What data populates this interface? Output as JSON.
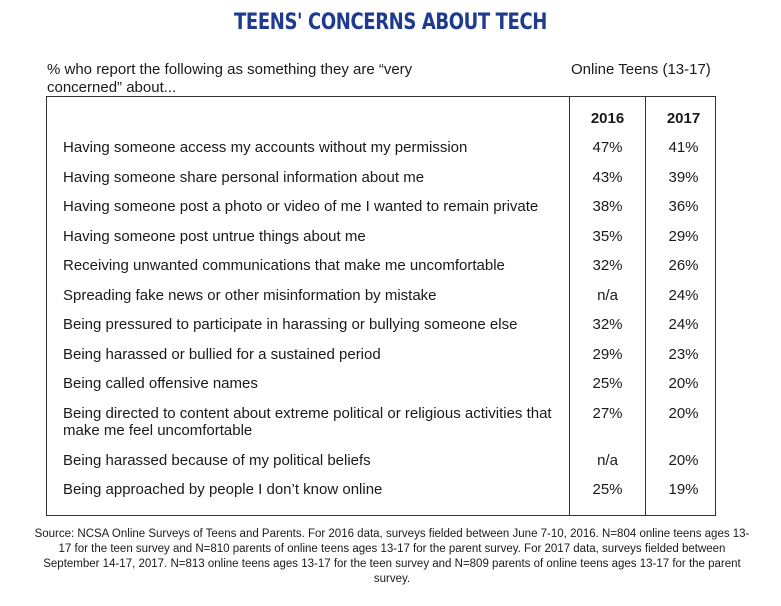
{
  "chart_data": {
    "type": "table",
    "title": "TEENS' CONCERNS ABOUT TECH",
    "subtitle": "% who report the following as something they are “very concerned” about...",
    "group_label": "Online Teens (13-17)",
    "columns": [
      "2016",
      "2017"
    ],
    "rows": [
      {
        "label": "Having someone access my accounts without my permission",
        "values": [
          "47%",
          "41%"
        ]
      },
      {
        "label": "Having someone share personal information about me",
        "values": [
          "43%",
          "39%"
        ]
      },
      {
        "label": "Having someone post a photo or video of me I wanted to remain private",
        "values": [
          "38%",
          "36%"
        ]
      },
      {
        "label": "Having someone post untrue things about me",
        "values": [
          "35%",
          "29%"
        ]
      },
      {
        "label": "Receiving unwanted communications that make me uncomfortable",
        "values": [
          "32%",
          "26%"
        ]
      },
      {
        "label": "Spreading fake news or other misinformation by mistake",
        "values": [
          "n/a",
          "24%"
        ]
      },
      {
        "label": "Being pressured to participate in harassing or bullying someone else",
        "values": [
          "32%",
          "24%"
        ]
      },
      {
        "label": "Being harassed or bullied for a sustained period",
        "values": [
          "29%",
          "23%"
        ]
      },
      {
        "label": "Being called offensive names",
        "values": [
          "25%",
          "20%"
        ]
      },
      {
        "label": "Being directed to content about extreme political or religious activities that make me feel uncomfortable",
        "values": [
          "27%",
          "20%"
        ]
      },
      {
        "label": "Being harassed because of my political beliefs",
        "values": [
          "n/a",
          "20%"
        ]
      },
      {
        "label": "Being approached by people I don’t know online",
        "values": [
          "25%",
          "19%"
        ]
      }
    ],
    "source": "Source: NCSA Online Surveys of Teens and Parents. For 2016 data, surveys fielded between June 7-10, 2016. N=804 online teens ages 13-17 for the teen survey and N=810 parents of online teens ages 13-17 for the parent survey. For 2017 data, surveys fielded between September 14-17, 2017. N=813 online teens ages 13-17 for the teen survey and N=809 parents of online teens ages 13-17 for the parent survey."
  }
}
